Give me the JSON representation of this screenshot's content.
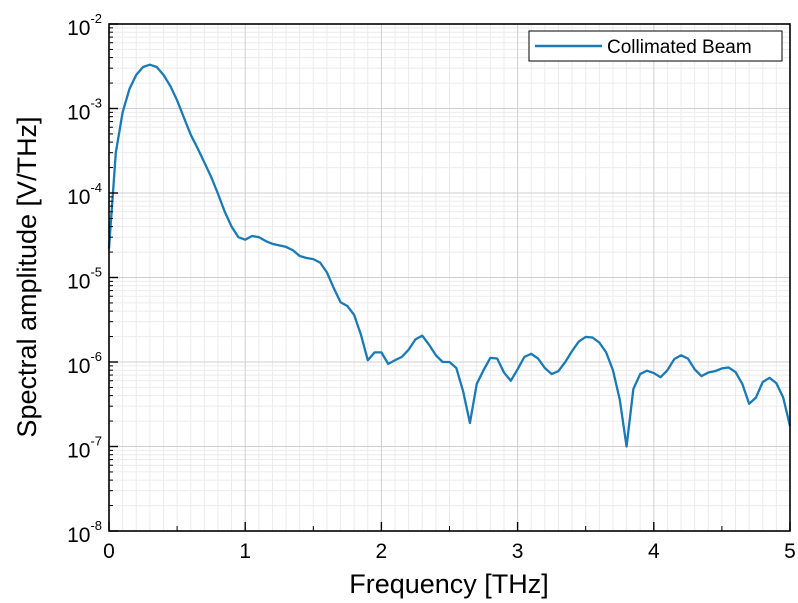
{
  "chart_data": {
    "type": "line",
    "title": "",
    "xlabel": "Frequency [THz]",
    "ylabel": "Spectral amplitude [V/THz]",
    "xlim": [
      0,
      5
    ],
    "ylim": [
      1e-08,
      0.01
    ],
    "yscale": "log",
    "grid": true,
    "legend_position": "top-right",
    "x_ticks": [
      {
        "value": 0,
        "label": "0"
      },
      {
        "value": 1,
        "label": "1"
      },
      {
        "value": 2,
        "label": "2"
      },
      {
        "value": 3,
        "label": "3"
      },
      {
        "value": 4,
        "label": "4"
      },
      {
        "value": 5,
        "label": "5"
      }
    ],
    "y_ticks": [
      {
        "value": 1e-08,
        "base": "10",
        "exp": "-8"
      },
      {
        "value": 1e-07,
        "base": "10",
        "exp": "-7"
      },
      {
        "value": 1e-06,
        "base": "10",
        "exp": "-6"
      },
      {
        "value": 1e-05,
        "base": "10",
        "exp": "-5"
      },
      {
        "value": 0.0001,
        "base": "10",
        "exp": "-4"
      },
      {
        "value": 0.001,
        "base": "10",
        "exp": "-3"
      },
      {
        "value": 0.01,
        "base": "10",
        "exp": "-2"
      }
    ],
    "series": [
      {
        "name": "Collimated Beam",
        "color": "#1a7ab5",
        "points": [
          [
            0.0,
            2.2e-05
          ],
          [
            0.05,
            0.0003
          ],
          [
            0.1,
            0.0009
          ],
          [
            0.15,
            0.0017
          ],
          [
            0.2,
            0.0025
          ],
          [
            0.25,
            0.0031
          ],
          [
            0.3,
            0.0033
          ],
          [
            0.35,
            0.0031
          ],
          [
            0.4,
            0.0025
          ],
          [
            0.45,
            0.00185
          ],
          [
            0.5,
            0.00125
          ],
          [
            0.55,
            0.00078
          ],
          [
            0.6,
            0.00049
          ],
          [
            0.65,
            0.00034
          ],
          [
            0.7,
            0.00023
          ],
          [
            0.75,
            0.000155
          ],
          [
            0.8,
            9.8e-05
          ],
          [
            0.85,
            6e-05
          ],
          [
            0.9,
            4e-05
          ],
          [
            0.95,
            3e-05
          ],
          [
            1.0,
            2.8e-05
          ],
          [
            1.05,
            3.1e-05
          ],
          [
            1.1,
            3e-05
          ],
          [
            1.15,
            2.7e-05
          ],
          [
            1.2,
            2.5e-05
          ],
          [
            1.3,
            2.3e-05
          ],
          [
            1.35,
            2.1e-05
          ],
          [
            1.4,
            1.8e-05
          ],
          [
            1.45,
            1.7e-05
          ],
          [
            1.5,
            1.65e-05
          ],
          [
            1.55,
            1.5e-05
          ],
          [
            1.6,
            1.15e-05
          ],
          [
            1.65,
            7.5e-06
          ],
          [
            1.7,
            5.1e-06
          ],
          [
            1.75,
            4.6e-06
          ],
          [
            1.8,
            3.6e-06
          ],
          [
            1.85,
            2.1e-06
          ],
          [
            1.9,
            1.05e-06
          ],
          [
            1.95,
            1.3e-06
          ],
          [
            2.0,
            1.3e-06
          ],
          [
            2.05,
            9.5e-07
          ],
          [
            2.1,
            1.05e-06
          ],
          [
            2.15,
            1.15e-06
          ],
          [
            2.2,
            1.4e-06
          ],
          [
            2.25,
            1.85e-06
          ],
          [
            2.3,
            2.05e-06
          ],
          [
            2.35,
            1.6e-06
          ],
          [
            2.4,
            1.2e-06
          ],
          [
            2.45,
            1e-06
          ],
          [
            2.5,
            1e-06
          ],
          [
            2.55,
            8.5e-07
          ],
          [
            2.6,
            4.5e-07
          ],
          [
            2.65,
            1.9e-07
          ],
          [
            2.7,
            5.5e-07
          ],
          [
            2.75,
            8e-07
          ],
          [
            2.8,
            1.12e-06
          ],
          [
            2.85,
            1.1e-06
          ],
          [
            2.9,
            7.5e-07
          ],
          [
            2.95,
            6e-07
          ],
          [
            3.0,
            8.2e-07
          ],
          [
            3.05,
            1.15e-06
          ],
          [
            3.1,
            1.25e-06
          ],
          [
            3.15,
            1.1e-06
          ],
          [
            3.2,
            8.5e-07
          ],
          [
            3.25,
            7.2e-07
          ],
          [
            3.3,
            7.8e-07
          ],
          [
            3.35,
            1e-06
          ],
          [
            3.4,
            1.35e-06
          ],
          [
            3.45,
            1.75e-06
          ],
          [
            3.5,
            1.98e-06
          ],
          [
            3.55,
            1.95e-06
          ],
          [
            3.6,
            1.7e-06
          ],
          [
            3.65,
            1.3e-06
          ],
          [
            3.7,
            8e-07
          ],
          [
            3.75,
            3.6e-07
          ],
          [
            3.8,
            1e-07
          ],
          [
            3.85,
            4.8e-07
          ],
          [
            3.9,
            7.2e-07
          ],
          [
            3.95,
            7.9e-07
          ],
          [
            4.0,
            7.4e-07
          ],
          [
            4.05,
            6.6e-07
          ],
          [
            4.1,
            8e-07
          ],
          [
            4.15,
            1.08e-06
          ],
          [
            4.2,
            1.2e-06
          ],
          [
            4.25,
            1.1e-06
          ],
          [
            4.3,
            8.2e-07
          ],
          [
            4.35,
            6.8e-07
          ],
          [
            4.4,
            7.5e-07
          ],
          [
            4.45,
            7.8e-07
          ],
          [
            4.5,
            8.4e-07
          ],
          [
            4.55,
            8.6e-07
          ],
          [
            4.6,
            7.6e-07
          ],
          [
            4.65,
            5.5e-07
          ],
          [
            4.7,
            3.2e-07
          ],
          [
            4.75,
            3.8e-07
          ],
          [
            4.8,
            5.8e-07
          ],
          [
            4.85,
            6.5e-07
          ],
          [
            4.9,
            5.6e-07
          ],
          [
            4.95,
            3.8e-07
          ],
          [
            5.0,
            1.75e-07
          ]
        ]
      }
    ]
  },
  "colors": {
    "background": "#ffffff",
    "axis": "#000000",
    "grid_major": "#cfcfcf",
    "grid_minor": "#ebebeb",
    "series": "#1a7ab5"
  }
}
